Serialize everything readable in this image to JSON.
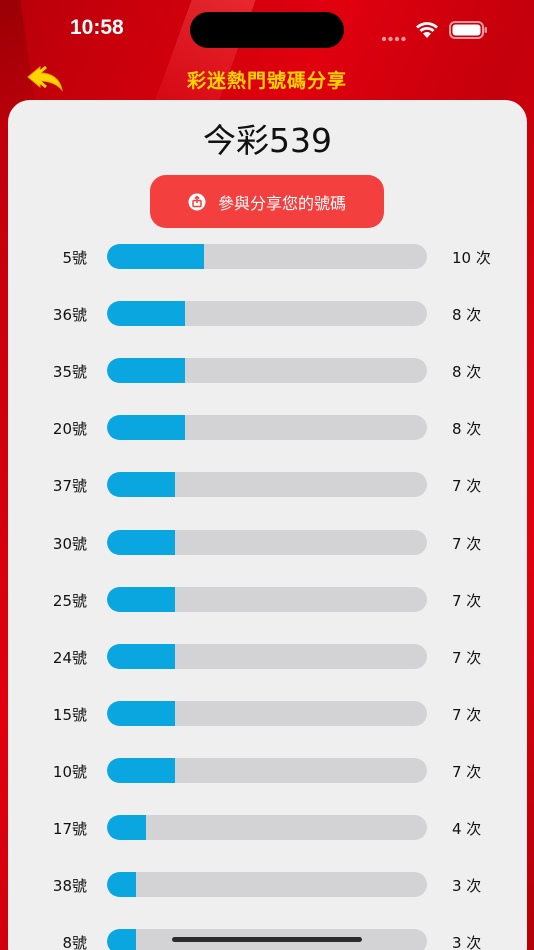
{
  "status_bar": {
    "time": "10:58"
  },
  "nav": {
    "title": "彩迷熱門號碼分享"
  },
  "game": {
    "title": "今彩539"
  },
  "share_button": {
    "label": "參與分享您的號碼"
  },
  "colors": {
    "accent": "#f43f3f",
    "bar_fill": "#0aa6e0",
    "bar_track": "#d3d3d6",
    "title_yellow": "#ffd400"
  },
  "max_count": 33,
  "rows": [
    {
      "number": "5號",
      "count": 10,
      "count_label": "10 次"
    },
    {
      "number": "36號",
      "count": 8,
      "count_label": "8 次"
    },
    {
      "number": "35號",
      "count": 8,
      "count_label": "8 次"
    },
    {
      "number": "20號",
      "count": 8,
      "count_label": "8 次"
    },
    {
      "number": "37號",
      "count": 7,
      "count_label": "7 次"
    },
    {
      "number": "30號",
      "count": 7,
      "count_label": "7 次"
    },
    {
      "number": "25號",
      "count": 7,
      "count_label": "7 次"
    },
    {
      "number": "24號",
      "count": 7,
      "count_label": "7 次"
    },
    {
      "number": "15號",
      "count": 7,
      "count_label": "7 次"
    },
    {
      "number": "10號",
      "count": 7,
      "count_label": "7 次"
    },
    {
      "number": "17號",
      "count": 4,
      "count_label": "4 次"
    },
    {
      "number": "38號",
      "count": 3,
      "count_label": "3 次"
    },
    {
      "number": "8號",
      "count": 3,
      "count_label": "3 次"
    }
  ]
}
